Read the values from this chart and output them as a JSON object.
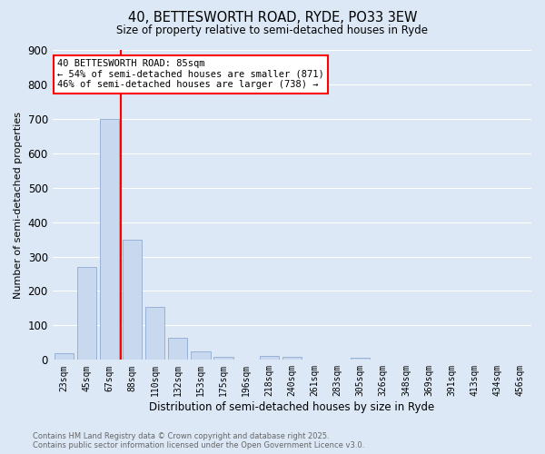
{
  "title": "40, BETTESWORTH ROAD, RYDE, PO33 3EW",
  "subtitle": "Size of property relative to semi-detached houses in Ryde",
  "xlabel": "Distribution of semi-detached houses by size in Ryde",
  "ylabel": "Number of semi-detached properties",
  "bar_labels": [
    "23sqm",
    "45sqm",
    "67sqm",
    "88sqm",
    "110sqm",
    "132sqm",
    "153sqm",
    "175sqm",
    "196sqm",
    "218sqm",
    "240sqm",
    "261sqm",
    "283sqm",
    "305sqm",
    "326sqm",
    "348sqm",
    "369sqm",
    "391sqm",
    "413sqm",
    "434sqm",
    "456sqm"
  ],
  "bar_values": [
    20,
    270,
    700,
    350,
    155,
    65,
    25,
    10,
    0,
    12,
    8,
    0,
    0,
    5,
    0,
    0,
    0,
    0,
    0,
    0,
    0
  ],
  "bar_color": "#c8d8ee",
  "bar_edge_color": "#90aad0",
  "background_color": "#dce8f5",
  "grid_color": "#ffffff",
  "vline_color": "red",
  "vline_x_idx": 3,
  "annotation_title": "40 BETTESWORTH ROAD: 85sqm",
  "annotation_line1": "← 54% of semi-detached houses are smaller (871)",
  "annotation_line2": "46% of semi-detached houses are larger (738) →",
  "annotation_box_color": "#ffffff",
  "annotation_box_edge": "red",
  "ylim": [
    0,
    900
  ],
  "yticks": [
    0,
    100,
    200,
    300,
    400,
    500,
    600,
    700,
    800,
    900
  ],
  "footer_line1": "Contains HM Land Registry data © Crown copyright and database right 2025.",
  "footer_line2": "Contains public sector information licensed under the Open Government Licence v3.0."
}
